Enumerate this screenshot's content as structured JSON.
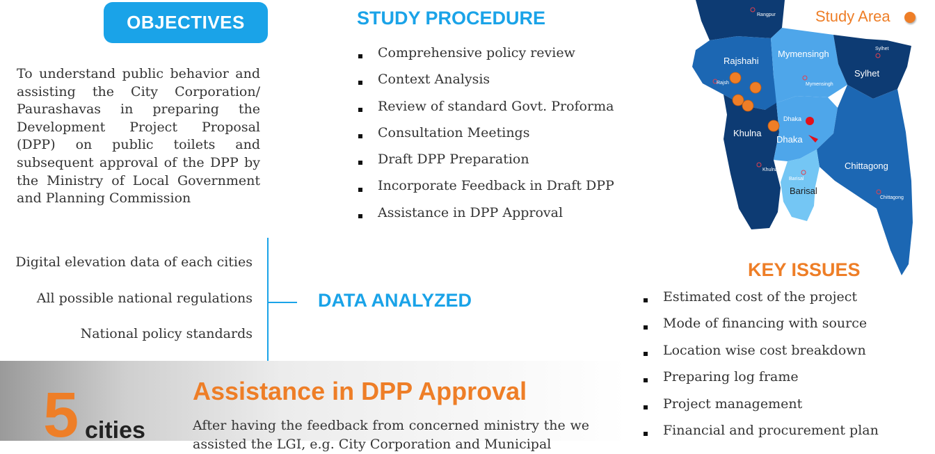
{
  "objectives": {
    "label": "OBJECTIVES",
    "text": "To understand public behavior and assisting the City Corporation/ Paurashavas in preparing the Development Project Proposal (DPP) on public toilets and subsequent approval of the DPP by the Ministry of Local Government and Planning Commission"
  },
  "study_procedure": {
    "title": "STUDY PROCEDURE",
    "items": [
      "Comprehensive policy review",
      "Context Analysis",
      "Review of standard Govt. Proforma",
      "Consultation Meetings",
      "Draft DPP Preparation",
      "Incorporate Feedback in Draft DPP",
      "Assistance in DPP Approval"
    ]
  },
  "data_analyzed": {
    "title": "DATA ANALYZED",
    "items": [
      "Digital elevation data of each cities",
      "All possible national regulations",
      "National policy standards"
    ]
  },
  "highlight": {
    "number": "5",
    "unit": "cities",
    "title": "Assistance in DPP Approval",
    "text": "After having the feedback from concerned ministry the we assisted the LGI, e.g. City Corporation and Municipal"
  },
  "map": {
    "legend_label": "Study Area",
    "divisions": [
      "Rangpur",
      "Rajshahi",
      "Mymensingh",
      "Sylhet",
      "Khulna",
      "Dhaka",
      "Chittagong",
      "Barisal"
    ],
    "cities": [
      "Rangpur",
      "Sylhet",
      "Rajsh",
      "Mymensingh",
      "Dhaka",
      "Khulna",
      "Barisal",
      "Chittagong"
    ],
    "colors": {
      "dark": "#0d3b73",
      "medium": "#1c67b3",
      "light": "#4ea6ea",
      "lightest": "#74c6f4",
      "study_marker": "#ee7e27",
      "capital_marker": "#e3101a"
    }
  },
  "key_issues": {
    "title": "KEY ISSUES",
    "items": [
      "Estimated cost of the project",
      "Mode of financing with source",
      "Location wise cost breakdown",
      "Preparing log frame",
      "Project management",
      "Financial and procurement plan"
    ]
  },
  "theme": {
    "accent_blue": "#1aa3e8",
    "accent_orange": "#ee7e27"
  }
}
